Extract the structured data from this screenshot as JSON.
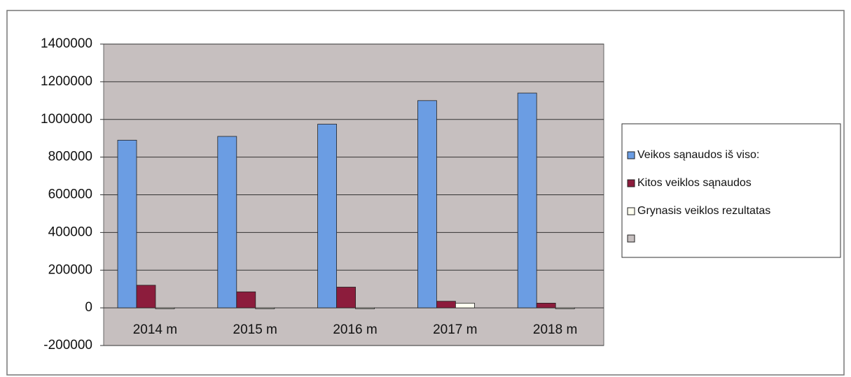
{
  "chart_data": {
    "type": "bar",
    "categories": [
      "2014 m",
      "2015 m",
      "2016 m",
      "2017 m",
      "2018 m"
    ],
    "series": [
      {
        "name": "Veikos sąnaudos iš viso:",
        "color": "#6b9de3",
        "values": [
          890000,
          910000,
          975000,
          1100000,
          1140000
        ]
      },
      {
        "name": "Kitos veiklos sąnaudos",
        "color": "#8c1c3c",
        "values": [
          120000,
          85000,
          110000,
          35000,
          25000
        ]
      },
      {
        "name": "Grynasis veiklos rezultatas",
        "color": "#fffff0",
        "values": [
          -5000,
          -5000,
          -5000,
          25000,
          -5000
        ]
      }
    ],
    "ylim": [
      -200000,
      1400000
    ],
    "yticks": [
      -200000,
      0,
      200000,
      400000,
      600000,
      800000,
      1000000,
      1200000,
      1400000
    ],
    "grid": true,
    "legend": "right"
  }
}
